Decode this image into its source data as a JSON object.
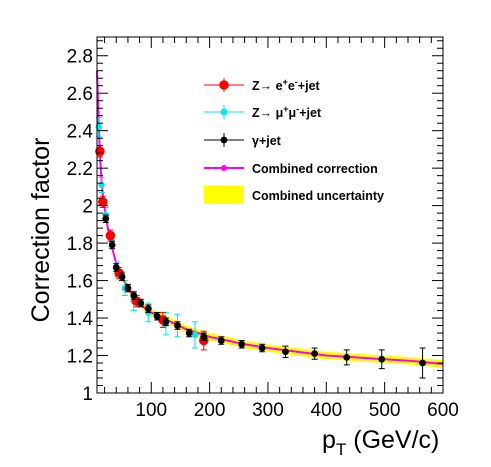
{
  "chart_data": {
    "type": "scatter",
    "xlabel_main": "p",
    "xlabel_sub": "T",
    "xlabel_unit": " (GeV/c)",
    "ylabel": "Correction factor",
    "xlim": [
      7,
      600
    ],
    "ylim": [
      1.0,
      2.9
    ],
    "x_ticks": [
      100,
      200,
      300,
      400,
      500,
      600
    ],
    "x_tick_labels": [
      "100",
      "200",
      "300",
      "400",
      "500",
      "600"
    ],
    "y_ticks": [
      1.0,
      1.2,
      1.4,
      1.6,
      1.8,
      2.0,
      2.2,
      2.4,
      2.6,
      2.8
    ],
    "y_tick_labels": [
      "1",
      "1.2",
      "1.4",
      "1.6",
      "1.8",
      "2",
      "2.2",
      "2.4",
      "2.6",
      "2.8"
    ],
    "legend_position": "top-right",
    "legend": [
      {
        "key": "zee",
        "prefix": "Z",
        "arrow": "→",
        "p1": " e",
        "s1": "+",
        "p2": "e",
        "s2": "-",
        "suffix": "+jet"
      },
      {
        "key": "zmm",
        "prefix": "Z",
        "arrow": "→",
        "p1": " μ",
        "s1": "+",
        "p2": "μ",
        "s2": "-",
        "suffix": "+jet"
      },
      {
        "key": "gjet",
        "prefix": "γ",
        "arrow": "",
        "p1": "",
        "s1": "",
        "p2": "",
        "s2": "",
        "suffix": "+jet"
      },
      {
        "key": "comb",
        "prefix": "Combined correction",
        "arrow": "",
        "p1": "",
        "s1": "",
        "p2": "",
        "s2": "",
        "suffix": ""
      },
      {
        "key": "band",
        "prefix": "Combined uncertainty",
        "arrow": "",
        "p1": "",
        "s1": "",
        "p2": "",
        "s2": "",
        "suffix": ""
      }
    ],
    "colors": {
      "zee": "#ff0000",
      "zmm": "#00e5ee",
      "gjet": "#000000",
      "comb": "#ff00ff",
      "band": "#ffff00"
    },
    "series": [
      {
        "key": "zee",
        "points": [
          {
            "x": 12,
            "y": 2.29,
            "err": 0.03
          },
          {
            "x": 17,
            "y": 2.02,
            "err": 0.03
          },
          {
            "x": 30,
            "y": 1.84,
            "err": 0.03
          },
          {
            "x": 45,
            "y": 1.64,
            "err": 0.03
          },
          {
            "x": 75,
            "y": 1.49,
            "err": 0.03
          },
          {
            "x": 120,
            "y": 1.39,
            "err": 0.04
          },
          {
            "x": 190,
            "y": 1.28,
            "err": 0.05
          }
        ]
      },
      {
        "key": "zmm",
        "points": [
          {
            "x": 10,
            "y": 2.42,
            "err": 0.05
          },
          {
            "x": 15,
            "y": 2.11,
            "err": 0.04
          },
          {
            "x": 22,
            "y": 1.95,
            "err": 0.04
          },
          {
            "x": 32,
            "y": 1.82,
            "err": 0.04
          },
          {
            "x": 42,
            "y": 1.66,
            "err": 0.04
          },
          {
            "x": 55,
            "y": 1.56,
            "err": 0.04
          },
          {
            "x": 70,
            "y": 1.49,
            "err": 0.05
          },
          {
            "x": 95,
            "y": 1.43,
            "err": 0.05
          },
          {
            "x": 125,
            "y": 1.37,
            "err": 0.06
          },
          {
            "x": 145,
            "y": 1.36,
            "err": 0.06
          },
          {
            "x": 175,
            "y": 1.31,
            "err": 0.07
          }
        ]
      },
      {
        "key": "gjet",
        "points": [
          {
            "x": 22,
            "y": 1.93,
            "err": 0.02
          },
          {
            "x": 33,
            "y": 1.79,
            "err": 0.02
          },
          {
            "x": 40,
            "y": 1.67,
            "err": 0.02
          },
          {
            "x": 50,
            "y": 1.62,
            "err": 0.02
          },
          {
            "x": 60,
            "y": 1.56,
            "err": 0.02
          },
          {
            "x": 70,
            "y": 1.52,
            "err": 0.02
          },
          {
            "x": 82,
            "y": 1.48,
            "err": 0.02
          },
          {
            "x": 95,
            "y": 1.45,
            "err": 0.02
          },
          {
            "x": 110,
            "y": 1.41,
            "err": 0.02
          },
          {
            "x": 125,
            "y": 1.38,
            "err": 0.02
          },
          {
            "x": 145,
            "y": 1.36,
            "err": 0.02
          },
          {
            "x": 165,
            "y": 1.32,
            "err": 0.02
          },
          {
            "x": 190,
            "y": 1.3,
            "err": 0.02
          },
          {
            "x": 220,
            "y": 1.28,
            "err": 0.02
          },
          {
            "x": 255,
            "y": 1.26,
            "err": 0.02
          },
          {
            "x": 290,
            "y": 1.24,
            "err": 0.02
          },
          {
            "x": 330,
            "y": 1.22,
            "err": 0.03
          },
          {
            "x": 380,
            "y": 1.21,
            "err": 0.03
          },
          {
            "x": 435,
            "y": 1.19,
            "err": 0.04
          },
          {
            "x": 495,
            "y": 1.18,
            "err": 0.05
          },
          {
            "x": 565,
            "y": 1.16,
            "err": 0.08
          }
        ]
      }
    ],
    "combined_curve": {
      "x": [
        7,
        9,
        11,
        13,
        15,
        18,
        21,
        25,
        30,
        35,
        40,
        45,
        50,
        60,
        70,
        80,
        90,
        100,
        120,
        140,
        160,
        180,
        200,
        230,
        260,
        300,
        350,
        400,
        450,
        500,
        550,
        600
      ],
      "y": [
        2.72,
        2.52,
        2.36,
        2.22,
        2.12,
        2.03,
        1.97,
        1.89,
        1.81,
        1.75,
        1.69,
        1.65,
        1.62,
        1.56,
        1.52,
        1.48,
        1.45,
        1.43,
        1.4,
        1.37,
        1.34,
        1.32,
        1.3,
        1.28,
        1.26,
        1.24,
        1.22,
        1.2,
        1.19,
        1.18,
        1.17,
        1.155
      ],
      "band_err": [
        0.05,
        0.04,
        0.03,
        0.025,
        0.02,
        0.02,
        0.02,
        0.02,
        0.02,
        0.02,
        0.02,
        0.02,
        0.02,
        0.02,
        0.02,
        0.02,
        0.02,
        0.02,
        0.02,
        0.02,
        0.02,
        0.02,
        0.02,
        0.02,
        0.02,
        0.02,
        0.02,
        0.02,
        0.02,
        0.02,
        0.02,
        0.02
      ]
    }
  }
}
